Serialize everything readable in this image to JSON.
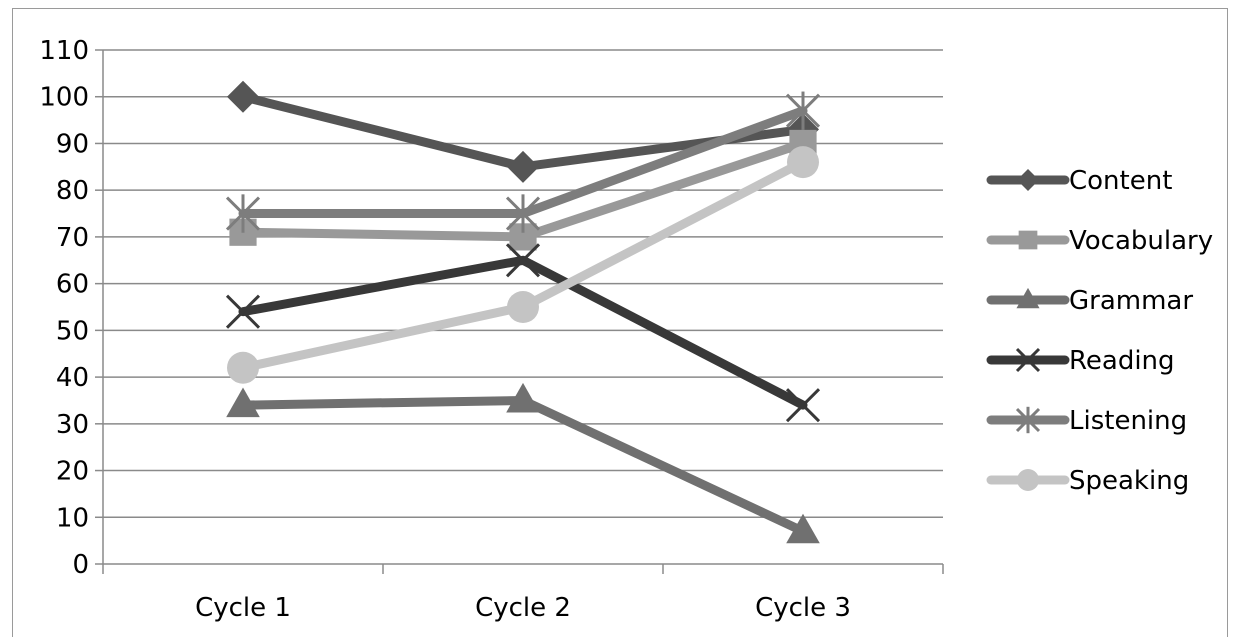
{
  "chart_data": {
    "type": "line",
    "title": "",
    "xlabel": "",
    "ylabel": "",
    "categories": [
      "Cycle 1",
      "Cycle 2",
      "Cycle 3"
    ],
    "ylim": [
      0,
      110
    ],
    "yticks": [
      0,
      10,
      20,
      30,
      40,
      50,
      60,
      70,
      80,
      90,
      100,
      110
    ],
    "grid": true,
    "legend_position": "right",
    "series": [
      {
        "name": "Content",
        "values": [
          100,
          85,
          93
        ],
        "marker": "diamond",
        "color": "#555555"
      },
      {
        "name": "Vocabulary",
        "values": [
          71,
          70,
          90
        ],
        "marker": "square",
        "color": "#999999"
      },
      {
        "name": "Grammar",
        "values": [
          34,
          35,
          7
        ],
        "marker": "triangle",
        "color": "#707070"
      },
      {
        "name": "Reading",
        "values": [
          54,
          65,
          34
        ],
        "marker": "x",
        "color": "#383838"
      },
      {
        "name": "Listening",
        "values": [
          75,
          75,
          97
        ],
        "marker": "star",
        "color": "#7d7d7d"
      },
      {
        "name": "Speaking",
        "values": [
          42,
          55,
          86
        ],
        "marker": "circle",
        "color": "#c4c4c4"
      }
    ]
  }
}
